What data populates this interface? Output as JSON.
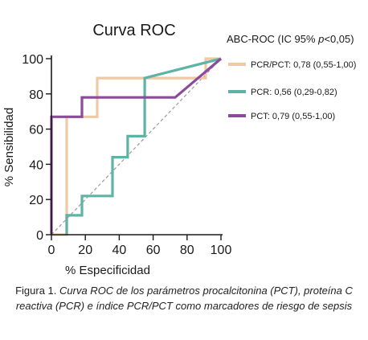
{
  "chart_data": {
    "type": "line",
    "title": "Curva ROC",
    "xlabel": "% Especificidad",
    "ylabel": "% Sensibilidad",
    "xlim": [
      0,
      100
    ],
    "ylim": [
      0,
      100
    ],
    "xticks": [
      0,
      20,
      40,
      60,
      80,
      100
    ],
    "yticks": [
      0,
      20,
      40,
      60,
      80,
      100
    ],
    "legend_title_prefix": "ABC-ROC (IC 95% ",
    "legend_title_p": "p",
    "legend_title_suffix": "<0,05)",
    "legend_position": "right",
    "reference_line": true,
    "series": [
      {
        "name": "PCR/PCT: 0,78 (0,55-1,00)",
        "color": "#efc9a4",
        "x": [
          0,
          0,
          9,
          9,
          9,
          27,
          27,
          91,
          91,
          100
        ],
        "y": [
          0,
          0,
          0,
          33,
          67,
          67,
          89,
          89,
          100,
          100
        ]
      },
      {
        "name": "PCR: 0,56 (0,29-0,82)",
        "color": "#5eb3a6",
        "x": [
          9,
          9,
          18,
          18,
          36,
          36,
          45,
          45,
          55,
          55,
          55,
          100
        ],
        "y": [
          0,
          11,
          11,
          22,
          22,
          44,
          44,
          56,
          56,
          89,
          89,
          100
        ]
      },
      {
        "name": "PCT: 0,79 (0,55-1,00)",
        "color": "#8b4a9c",
        "x": [
          0,
          0,
          0,
          18,
          18,
          73,
          100
        ],
        "y": [
          0,
          56,
          67,
          67,
          78,
          78,
          100
        ]
      }
    ]
  },
  "caption": {
    "lead": "Figura 1. ",
    "italic": "Curva ROC de los parámetros procalcitonina (PCT), proteína C reactiva (PCR) e índice PCR/PCT como marcadores de riesgo de sepsis"
  }
}
